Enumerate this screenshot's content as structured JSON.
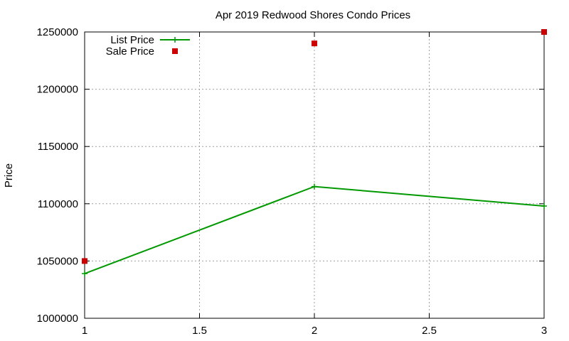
{
  "chart_data": {
    "type": "line",
    "title": "Apr 2019 Redwood Shores Condo Prices",
    "xlabel": "",
    "ylabel": "Price",
    "xlim": [
      1,
      3
    ],
    "ylim": [
      1000000,
      1250000
    ],
    "xticks": [
      1,
      1.5,
      2,
      2.5,
      3
    ],
    "xtick_labels": [
      "1",
      "1.5",
      "2",
      "2.5",
      "3"
    ],
    "yticks": [
      1000000,
      1050000,
      1100000,
      1150000,
      1200000,
      1250000
    ],
    "ytick_labels": [
      "1000000",
      "1050000",
      "1100000",
      "1150000",
      "1200000",
      "1250000"
    ],
    "grid": true,
    "legend_position": "top-left",
    "series": [
      {
        "name": "List Price",
        "style": "line-points",
        "marker": "plus",
        "color": "#009900",
        "x": [
          1,
          2,
          3
        ],
        "y": [
          1039000,
          1115000,
          1098000
        ]
      },
      {
        "name": "Sale Price",
        "style": "points",
        "marker": "square",
        "color": "#cc0000",
        "x": [
          1,
          2,
          3
        ],
        "y": [
          1050000,
          1240000,
          1250000
        ]
      }
    ]
  }
}
